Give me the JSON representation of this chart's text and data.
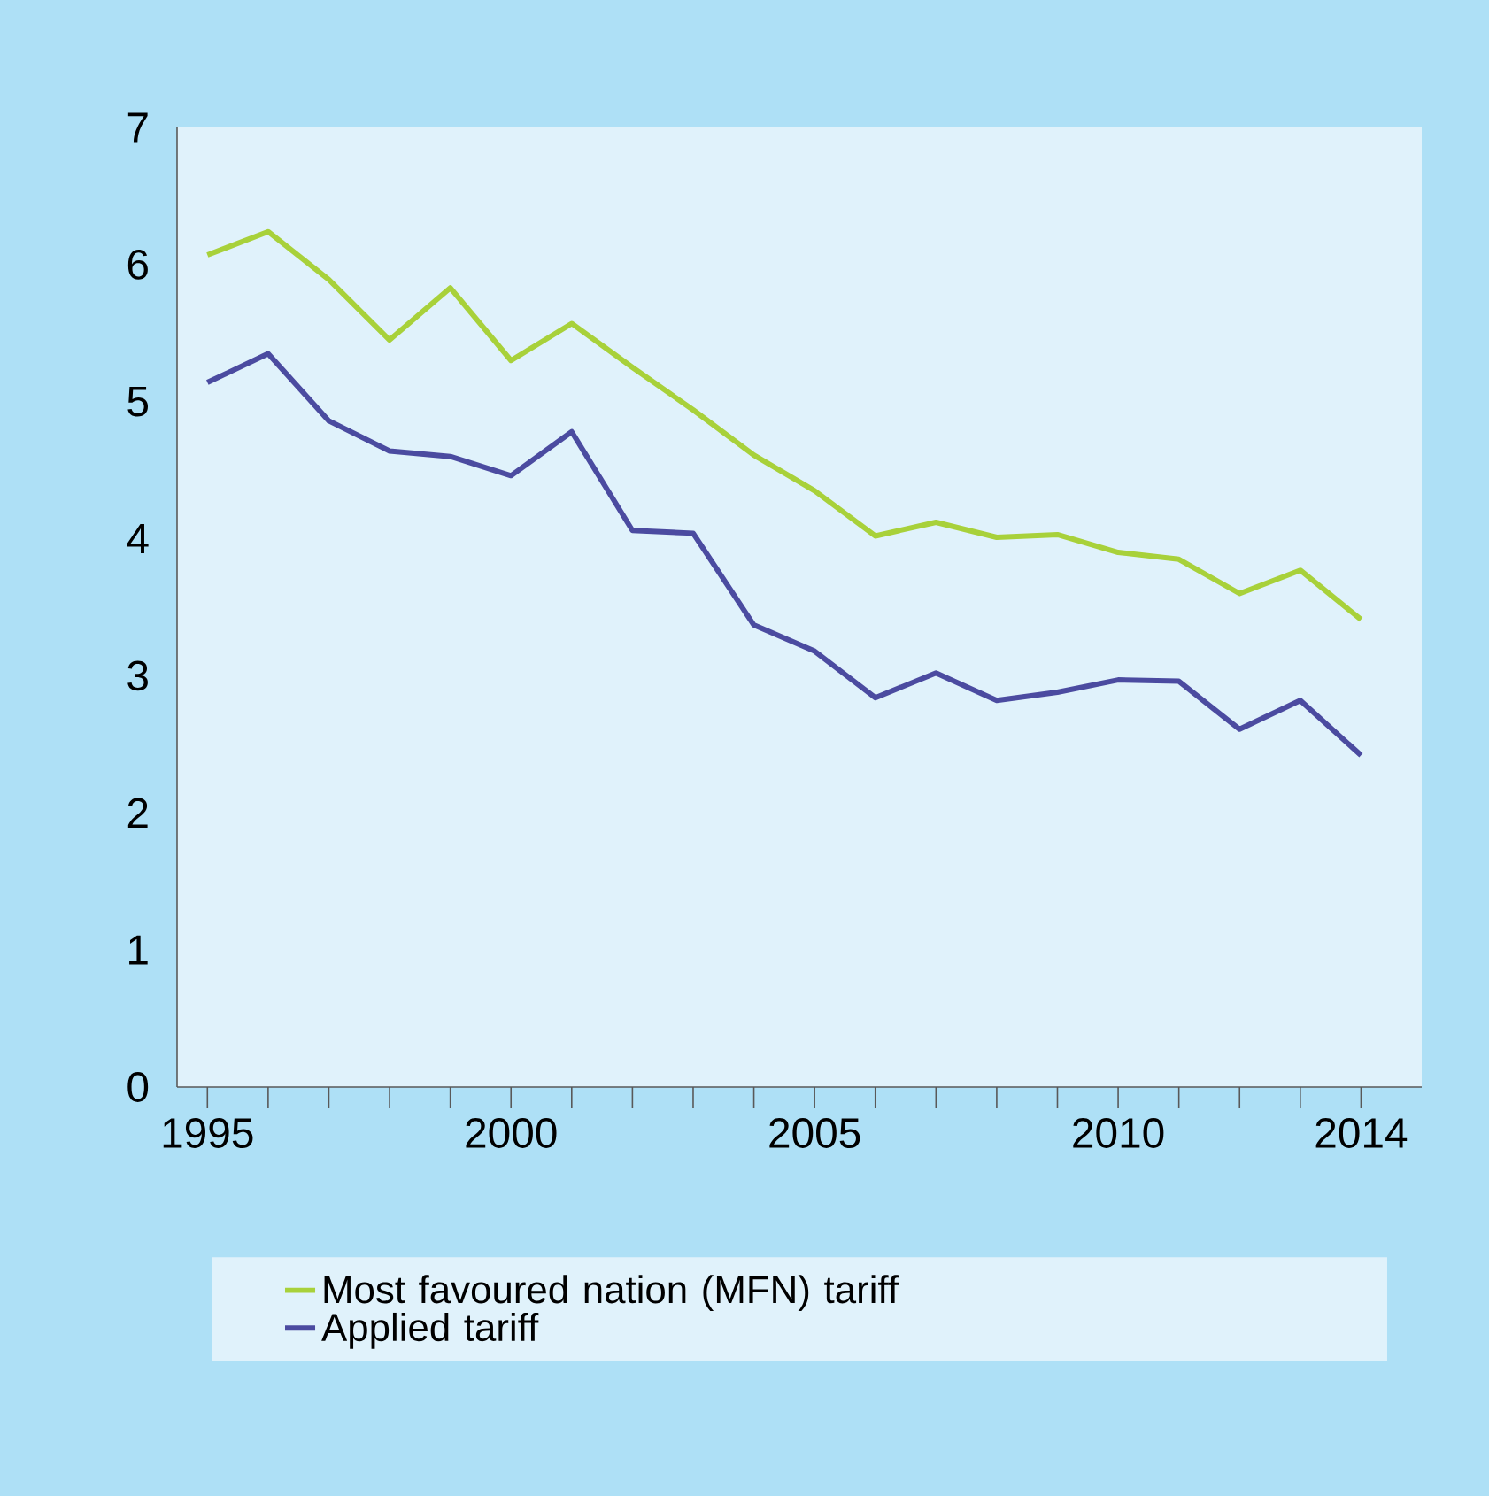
{
  "chart_data": {
    "type": "line",
    "x": [
      1995,
      1996,
      1997,
      1998,
      1999,
      2000,
      2001,
      2002,
      2003,
      2004,
      2005,
      2006,
      2007,
      2008,
      2009,
      2010,
      2011,
      2012,
      2013,
      2014
    ],
    "series": [
      {
        "name": "Most favoured nation (MFN) tariff",
        "color": "#a8d13a",
        "values": [
          6.07,
          6.24,
          5.89,
          5.45,
          5.83,
          5.3,
          5.57,
          5.25,
          4.94,
          4.61,
          4.35,
          4.02,
          4.12,
          4.01,
          4.03,
          3.9,
          3.85,
          3.6,
          3.77,
          3.41
        ]
      },
      {
        "name": "Applied tariff",
        "color": "#4b4ba0",
        "values": [
          5.14,
          5.35,
          4.86,
          4.64,
          4.6,
          4.46,
          4.78,
          4.06,
          4.04,
          3.37,
          3.18,
          2.84,
          3.02,
          2.82,
          2.88,
          2.97,
          2.96,
          2.61,
          2.82,
          2.42
        ]
      }
    ],
    "xlim": [
      1994.5,
      2015
    ],
    "xticks": [
      1995,
      {
        "value": 1996,
        "label": null
      },
      {
        "value": 1997,
        "label": null
      },
      {
        "value": 1998,
        "label": null
      },
      {
        "value": 1999,
        "label": null
      },
      2000,
      {
        "value": 2001,
        "label": null
      },
      {
        "value": 2002,
        "label": null
      },
      {
        "value": 2003,
        "label": null
      },
      {
        "value": 2004,
        "label": null
      },
      2005,
      {
        "value": 2006,
        "label": null
      },
      {
        "value": 2007,
        "label": null
      },
      {
        "value": 2008,
        "label": null
      },
      {
        "value": 2009,
        "label": null
      },
      2010,
      {
        "value": 2011,
        "label": null
      },
      {
        "value": 2012,
        "label": null
      },
      {
        "value": 2013,
        "label": null
      },
      2014
    ],
    "ylim": [
      0,
      7
    ],
    "yticks": [
      0,
      1,
      2,
      3,
      4,
      5,
      6,
      7
    ],
    "grid": false,
    "legend": "bottom",
    "marker": "none",
    "line_style": "solid"
  }
}
